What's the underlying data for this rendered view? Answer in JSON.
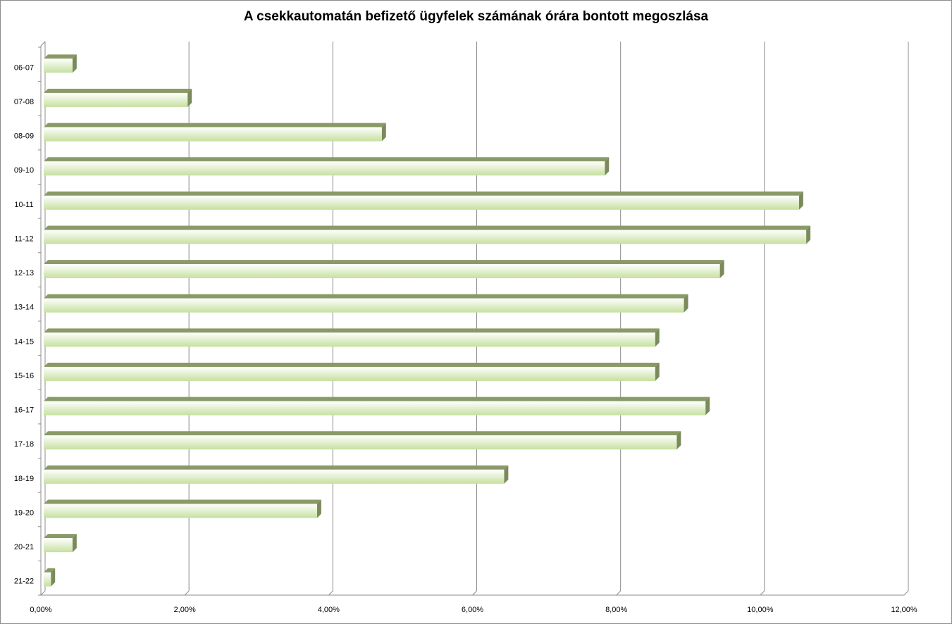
{
  "chart_data": {
    "type": "bar",
    "orientation": "horizontal",
    "title": "A csekkautomatán befizető ügyfelek számának órára bontott megoszlása",
    "xlabel": "",
    "ylabel": "",
    "categories": [
      "06-07",
      "07-08",
      "08-09",
      "09-10",
      "10-11",
      "11-12",
      "12-13",
      "13-14",
      "14-15",
      "15-16",
      "16-17",
      "17-18",
      "18-19",
      "19-20",
      "20-21",
      "21-22"
    ],
    "values": [
      0.4,
      2.0,
      4.7,
      7.8,
      10.5,
      10.6,
      9.4,
      8.9,
      8.5,
      8.5,
      9.2,
      8.8,
      6.4,
      3.8,
      0.4,
      0.1
    ],
    "xlim": [
      0,
      12
    ],
    "x_ticks": [
      "0,00%",
      "2,00%",
      "4,00%",
      "6,00%",
      "8,00%",
      "10,00%",
      "12,00%"
    ],
    "grid": true,
    "legend": "none",
    "colors": {
      "bar_face_top": "#ffffff",
      "bar_face_bottom": "#c6e0a0",
      "bar_top": "#8a9a66",
      "bar_side": "#7b8a5b",
      "gridline": "#8c8c8c"
    }
  }
}
